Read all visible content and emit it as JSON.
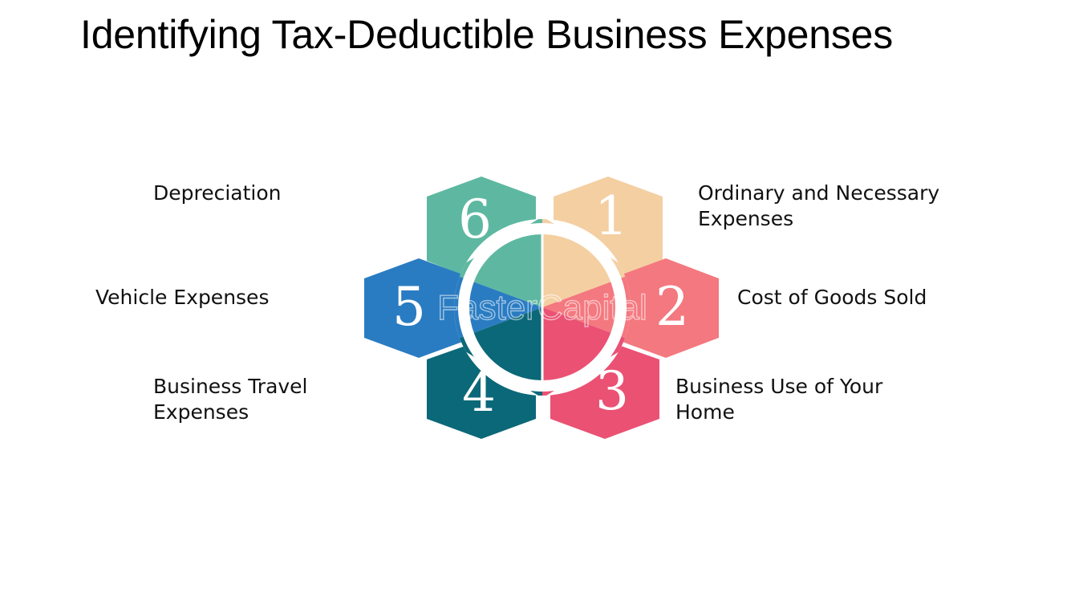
{
  "title": "Identifying Tax-Deductible Business Expenses",
  "watermark": "FasterCapital",
  "items": [
    {
      "number": "1",
      "lines": [
        "Ordinary and Necessary",
        "Expenses"
      ],
      "color": "#f4cfa2"
    },
    {
      "number": "2",
      "lines": [
        "Cost of Goods Sold"
      ],
      "color": "#f4787f"
    },
    {
      "number": "3",
      "lines": [
        "Business Use of Your",
        "Home"
      ],
      "color": "#ea5173"
    },
    {
      "number": "4",
      "lines": [
        "Business Travel",
        "Expenses"
      ],
      "color": "#0b6878"
    },
    {
      "number": "5",
      "lines": [
        "Vehicle Expenses"
      ],
      "color": "#2a7cc2"
    },
    {
      "number": "6",
      "lines": [
        "Depreciation"
      ],
      "color": "#5eb8a1"
    }
  ]
}
